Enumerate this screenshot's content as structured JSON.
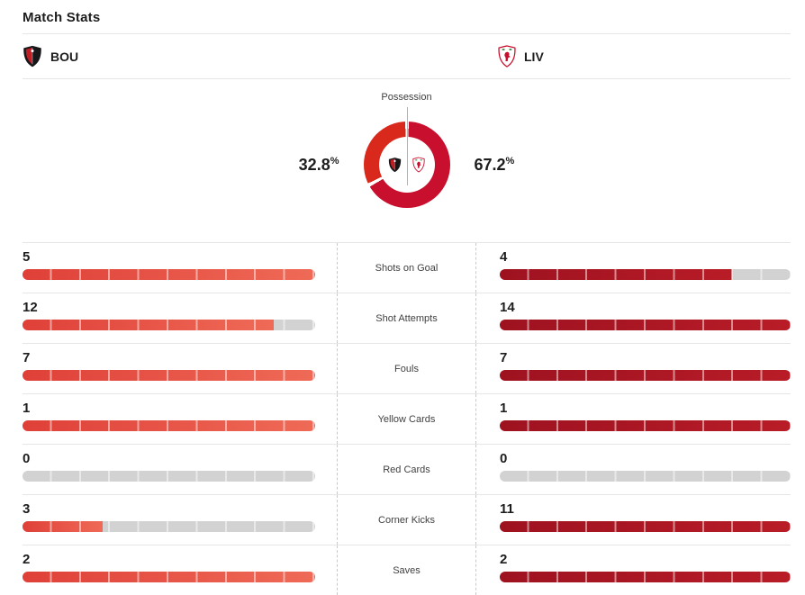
{
  "header": {
    "title": "Match Stats"
  },
  "teams": {
    "home": {
      "abbr": "BOU",
      "icon": "bou-crest-icon"
    },
    "away": {
      "abbr": "LIV",
      "icon": "liv-crest-icon"
    }
  },
  "colors": {
    "bou": "#df4038",
    "bou_light": "#ef6a57",
    "liv": "#9e1220",
    "liv_light": "#b81c27",
    "donut_bou": "#d8291c",
    "donut_liv": "#c8102e",
    "track": "#d2d2d2",
    "divider": "#e6e6e6",
    "dotted": "#c9c9c9"
  },
  "chart_data": [
    {
      "type": "pie",
      "style": "donut",
      "title": "Possession",
      "labels": [
        "BOU",
        "LIV"
      ],
      "values": [
        32.8,
        67.2
      ],
      "unit": "%",
      "colors": [
        "#d8291c",
        "#c8102e"
      ],
      "legend_position": "sides"
    },
    {
      "type": "bar",
      "orientation": "horizontal",
      "title": "Match Stats",
      "categories": [
        "Shots on Goal",
        "Shot Attempts",
        "Fouls",
        "Yellow Cards",
        "Red Cards",
        "Corner Kicks",
        "Saves"
      ],
      "series": [
        {
          "name": "BOU",
          "color": "#df4038",
          "values": [
            5,
            12,
            7,
            1,
            0,
            3,
            2
          ],
          "fill_pct": [
            100,
            85.7,
            100,
            100,
            0,
            27.3,
            100
          ]
        },
        {
          "name": "LIV",
          "color": "#9e1220",
          "values": [
            4,
            14,
            7,
            1,
            0,
            11,
            2
          ],
          "fill_pct": [
            80,
            100,
            100,
            100,
            0,
            100,
            100
          ]
        }
      ]
    }
  ]
}
